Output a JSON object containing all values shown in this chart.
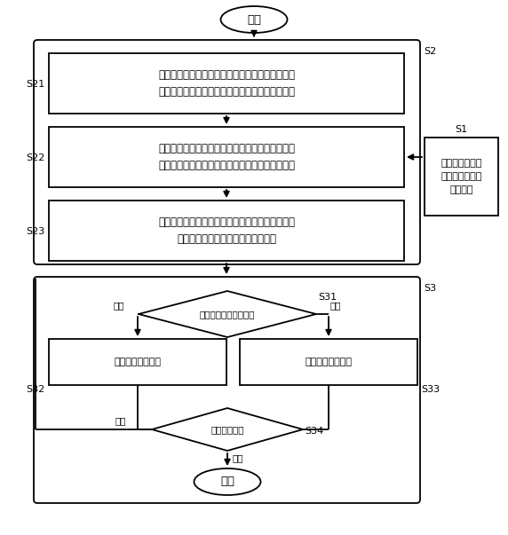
{
  "bg_color": "#ffffff",
  "line_color": "#000000",
  "box_fill": "#ffffff",
  "fs_main": 8.5,
  "fs_label": 8.0,
  "fs_small": 7.5,
  "start_text": "开始",
  "end_text": "结束",
  "s21_text": "读取最近一次码率调整之前预设时间内所述本地端\n中接收的数据包，并记录读出的数据包的第一数量",
  "s22_text": "读取最近一次码率调整之后预设时间内所述本地端\n中接收的数据包，并记录读出的数据包的第二数量",
  "s23_text": "根据接收数据包时打印的时间戳对应的心跳值，为\n读取的每一数据包添加对应的心跳值",
  "s1_text": "接收外部端发送\n至本地端的数据\n包并存储",
  "s31_text": "判断当前码率调整状态",
  "s32_text": "增加码率处理流程",
  "s33_text": "减少码率处理流程",
  "s34_text": "判断循环状态",
  "label_s1": "S1",
  "label_s2": "S2",
  "label_s3": "S3",
  "label_s21": "S21",
  "label_s22": "S22",
  "label_s23": "S23",
  "label_s31": "S31",
  "label_s32": "S32",
  "label_s33": "S33",
  "label_s34": "S34",
  "text_increase": "增加",
  "text_decrease": "减少",
  "text_continue": "继续",
  "text_stop": "停止"
}
